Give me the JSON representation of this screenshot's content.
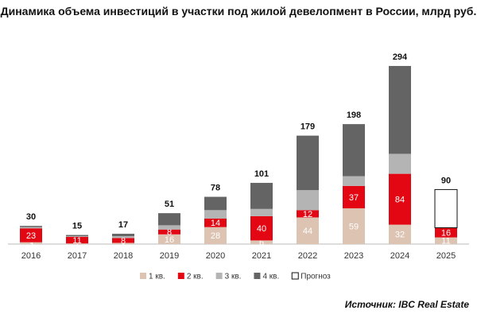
{
  "chart_data": {
    "type": "stacked_bar",
    "title": "Динамика объема инвестиций в участки под жилой девелопмент в России, млрд руб.",
    "categories": [
      "2016",
      "2017",
      "2018",
      "2019",
      "2020",
      "2021",
      "2022",
      "2023",
      "2024",
      "2025"
    ],
    "series": [
      {
        "name": "1 кв.",
        "color": "#dcc3b2",
        "labels": true,
        "values": [
          3,
          1,
          2,
          16,
          28,
          6,
          44,
          59,
          32,
          11
        ]
      },
      {
        "name": "2 кв.",
        "color": "#e30613",
        "labels": true,
        "values": [
          23,
          11,
          8,
          8,
          14,
          40,
          12,
          37,
          84,
          16
        ]
      },
      {
        "name": "3 кв.",
        "color": "#b4b4b4",
        "labels": false,
        "values": [
          2,
          1,
          3,
          7,
          14,
          12,
          33,
          16,
          33,
          null
        ]
      },
      {
        "name": "4 кв.",
        "color": "#646464",
        "labels": false,
        "values": [
          2,
          2,
          4,
          20,
          22,
          43,
          90,
          86,
          145,
          null
        ]
      },
      {
        "name": "Прогноз",
        "color": "#ffffff",
        "labels": false,
        "values": [
          null,
          null,
          null,
          null,
          null,
          null,
          null,
          null,
          null,
          63
        ]
      }
    ],
    "totals": [
      30,
      15,
      17,
      51,
      78,
      101,
      179,
      198,
      294,
      90
    ],
    "ylim": [
      0,
      300
    ],
    "source": "Источник: IBC Real Estate"
  }
}
